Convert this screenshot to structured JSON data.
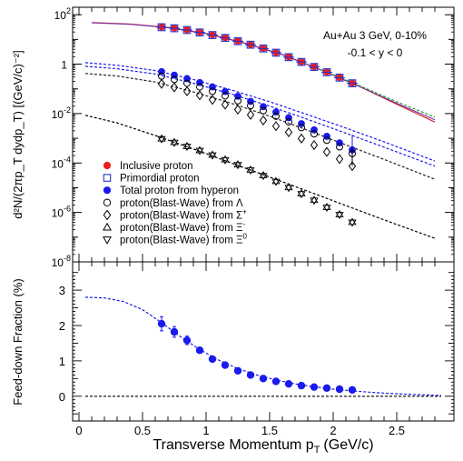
{
  "chart_data": [
    {
      "type": "scatter",
      "panel": "top",
      "ylabel": "d²N/(2πp_T dydp_T) [(GeV/c)⁻²]",
      "yscale": "log",
      "ylim": [
        1e-08,
        200
      ],
      "xlim": [
        -0.05,
        2.95
      ],
      "yticks": [
        {
          "base": "10",
          "exp": "2",
          "value": 100
        },
        {
          "base": "1",
          "exp": "",
          "value": 1
        },
        {
          "base": "10",
          "exp": "-2",
          "value": 0.01
        },
        {
          "base": "10",
          "exp": "-4",
          "value": 0.0001
        },
        {
          "base": "10",
          "exp": "-6",
          "value": 1e-06
        },
        {
          "base": "10",
          "exp": "-8",
          "value": 1e-08
        }
      ],
      "annotations": [
        "Au+Au 3 GeV, 0-10%",
        "-0.1 < y < 0"
      ],
      "legend_position": "bottom-left",
      "legend": [
        {
          "marker": "filled-circle",
          "color": "#ee1c1c",
          "label": "Inclusive proton",
          "sup": "",
          "sub": ""
        },
        {
          "marker": "open-square",
          "color": "#2233cc",
          "label": "Primordial proton",
          "sup": "",
          "sub": ""
        },
        {
          "marker": "filled-circle",
          "color": "#1a1aee",
          "label": "Total proton from hyperon",
          "sup": "",
          "sub": ""
        },
        {
          "marker": "open-circle",
          "color": "#000000",
          "label": "proton(Blast-Wave) from Λ",
          "sup": "",
          "sub": ""
        },
        {
          "marker": "open-diamond",
          "color": "#000000",
          "label": "proton(Blast-Wave) from Σ",
          "sup": "+",
          "sub": ""
        },
        {
          "marker": "open-triangle-up",
          "color": "#000000",
          "label": "proton(Blast-Wave) from Ξ",
          "sup": "",
          "sub": "-"
        },
        {
          "marker": "open-triangle-down",
          "color": "#000000",
          "label": "proton(Blast-Wave) from Ξ",
          "sup": "0",
          "sub": ""
        }
      ],
      "series": [
        {
          "name": "Inclusive proton",
          "marker": "filled-circle",
          "color": "#ee1c1c",
          "x": [
            0.65,
            0.75,
            0.85,
            0.95,
            1.05,
            1.15,
            1.25,
            1.35,
            1.45,
            1.55,
            1.65,
            1.75,
            1.85,
            1.95,
            2.05,
            2.15
          ],
          "y": [
            32,
            29,
            24.5,
            19.5,
            15.3,
            11.7,
            8.6,
            6.2,
            4.35,
            2.95,
            1.95,
            1.25,
            0.78,
            0.48,
            0.29,
            0.17
          ]
        },
        {
          "name": "Primordial proton",
          "marker": "open-square",
          "color": "#2233cc",
          "x": [
            0.65,
            0.75,
            0.85,
            0.95,
            1.05,
            1.15,
            1.25,
            1.35,
            1.45,
            1.55,
            1.65,
            1.75,
            1.85,
            1.95,
            2.05,
            2.15
          ],
          "y": [
            31.2,
            28.3,
            24,
            19.1,
            15,
            11.5,
            8.45,
            6.1,
            4.3,
            2.9,
            1.92,
            1.23,
            0.77,
            0.47,
            0.285,
            0.168
          ]
        },
        {
          "name": "Total proton from hyperon",
          "marker": "filled-circle",
          "color": "#1a1aee",
          "x": [
            0.65,
            0.75,
            0.85,
            0.95,
            1.05,
            1.15,
            1.25,
            1.35,
            1.45,
            1.55,
            1.65,
            1.75,
            1.85,
            1.95,
            2.05,
            2.15
          ],
          "y": [
            0.5,
            0.36,
            0.26,
            0.18,
            0.12,
            0.078,
            0.05,
            0.031,
            0.019,
            0.0115,
            0.0068,
            0.0039,
            0.0022,
            0.0012,
            0.00065,
            0.00034
          ],
          "yerr_high": [
            0.58,
            0.42,
            0,
            0,
            0,
            0,
            0,
            0,
            0,
            0,
            0,
            0,
            0,
            0,
            0,
            0.0014
          ]
        },
        {
          "name": "proton(Blast-Wave) from Λ",
          "marker": "open-circle",
          "color": "#000000",
          "x": [
            0.65,
            0.75,
            0.85,
            0.95,
            1.05,
            1.15,
            1.25,
            1.35,
            1.45,
            1.55,
            1.65,
            1.75,
            1.85,
            1.95,
            2.05,
            2.15
          ],
          "y": [
            0.33,
            0.24,
            0.17,
            0.12,
            0.08,
            0.052,
            0.033,
            0.021,
            0.013,
            0.0078,
            0.0046,
            0.0027,
            0.0015,
            0.00083,
            0.00045,
            0.00024
          ]
        },
        {
          "name": "proton(Blast-Wave) from Σ+",
          "marker": "open-diamond",
          "color": "#000000",
          "x": [
            0.65,
            0.75,
            0.85,
            0.95,
            1.05,
            1.15,
            1.25,
            1.35,
            1.45,
            1.55,
            1.65,
            1.75,
            1.85,
            1.95,
            2.05,
            2.15
          ],
          "y": [
            0.16,
            0.115,
            0.08,
            0.055,
            0.036,
            0.023,
            0.0145,
            0.0089,
            0.0053,
            0.0031,
            0.00175,
            0.00098,
            0.00053,
            0.00028,
            0.000145,
            7.5e-05
          ],
          "yerr_high": [
            0,
            0,
            0,
            0,
            0,
            0,
            0,
            0,
            0,
            0,
            0,
            0,
            0,
            0,
            0,
            0.00045
          ]
        },
        {
          "name": "proton(Blast-Wave) from Ξ-",
          "marker": "hourglass",
          "color": "#000000",
          "x": [
            0.65,
            0.75,
            0.85,
            0.95,
            1.05,
            1.15,
            1.25,
            1.35,
            1.45,
            1.55,
            1.65,
            1.75,
            1.85,
            1.95,
            2.05,
            2.15
          ],
          "y": [
            0.00095,
            0.00068,
            0.00047,
            0.00032,
            0.00021,
            0.000135,
            8.5e-05,
            5.2e-05,
            3.1e-05,
            1.8e-05,
            1.02e-05,
            5.7e-06,
            3.1e-06,
            1.6e-06,
            8.2e-07,
            4e-07
          ]
        }
      ],
      "curves": [
        {
          "name": "Inclusive proton fit",
          "color": "#cc2222",
          "style": "solid",
          "x": [
            0.1,
            0.4,
            0.7,
            1.0,
            1.3,
            1.6,
            1.9,
            2.2,
            2.5,
            2.8
          ],
          "y": [
            48,
            42,
            30.5,
            17.5,
            7.2,
            2.45,
            0.6,
            0.13,
            0.024,
            0.0045
          ]
        },
        {
          "name": "Primordial proton fit",
          "color": "#7a2a9a",
          "style": "solid",
          "x": [
            0.1,
            0.4,
            0.7,
            1.0,
            1.3,
            1.6,
            1.9,
            2.2,
            2.5,
            2.8
          ],
          "y": [
            47,
            41.2,
            30,
            17.1,
            7.1,
            2.42,
            0.59,
            0.128,
            0.026,
            0.0056
          ]
        },
        {
          "name": "Inclusive proton fit (green dashed)",
          "color": "#2a9a2a",
          "style": "dashed",
          "x": [
            1.9,
            2.2,
            2.5,
            2.8
          ],
          "y": [
            0.6,
            0.14,
            0.03,
            0.0072
          ]
        },
        {
          "name": "Total from hyperon (blast-wave)",
          "color": "#1a1aee",
          "style": "dashed",
          "x": [
            0.05,
            0.3,
            0.6,
            0.9,
            1.2,
            1.5,
            1.8,
            2.1,
            2.4,
            2.8
          ],
          "y": [
            1.15,
            0.9,
            0.55,
            0.24,
            0.09,
            0.03,
            0.009,
            0.0026,
            0.00072,
            0.00012
          ]
        },
        {
          "name": "from Λ (blast-wave)",
          "color": "#1a1aee",
          "style": "dashed",
          "x": [
            0.05,
            0.3,
            0.6,
            0.9,
            1.2,
            1.5,
            1.8,
            2.1,
            2.4,
            2.8
          ],
          "y": [
            0.82,
            0.65,
            0.4,
            0.17,
            0.062,
            0.02,
            0.0058,
            0.0016,
            0.00044,
            7.5e-05
          ]
        },
        {
          "name": "from Σ+ (blast-wave)",
          "color": "#222222",
          "style": "dashed",
          "x": [
            0.05,
            0.3,
            0.6,
            0.9,
            1.2,
            1.5,
            1.8,
            2.1,
            2.4,
            2.8
          ],
          "y": [
            0.42,
            0.33,
            0.19,
            0.075,
            0.026,
            0.0078,
            0.0021,
            0.00054,
            0.00014,
            2.2e-05
          ]
        },
        {
          "name": "from Ξ (blast-wave)",
          "color": "#000000",
          "style": "dashed",
          "x": [
            0.05,
            0.3,
            0.6,
            0.9,
            1.2,
            1.5,
            1.8,
            2.1,
            2.4,
            2.8
          ],
          "y": [
            0.0085,
            0.0042,
            0.0013,
            0.00037,
            0.0001,
            2.7e-05,
            7.2e-06,
            1.9e-06,
            5e-07,
            9e-08
          ]
        }
      ]
    },
    {
      "type": "scatter",
      "panel": "bottom",
      "xlabel": "Transverse Momentum p",
      "xlabel_sub": "T",
      "xlabel_unit": "(GeV/c)",
      "ylabel": "Feed-down Fraction (%)",
      "xlim": [
        -0.05,
        2.95
      ],
      "ylim": [
        -0.7,
        3.8
      ],
      "xticks": [
        0,
        0.5,
        1,
        1.5,
        2,
        2.5
      ],
      "yticks": [
        0,
        1,
        2,
        3
      ],
      "series": [
        {
          "name": "Feed-down fraction",
          "marker": "filled-circle",
          "color": "#1a1aee",
          "x": [
            0.65,
            0.75,
            0.85,
            0.95,
            1.05,
            1.15,
            1.25,
            1.35,
            1.45,
            1.55,
            1.65,
            1.75,
            1.85,
            1.95,
            2.05,
            2.15
          ],
          "y": [
            2.05,
            1.82,
            1.58,
            1.3,
            1.05,
            0.88,
            0.72,
            0.6,
            0.5,
            0.42,
            0.35,
            0.3,
            0.26,
            0.23,
            0.2,
            0.18
          ],
          "yerr": [
            0.2,
            0.15,
            0.12,
            0.08,
            0.06,
            0.05,
            0.04,
            0.03,
            0.03,
            0.02,
            0.02,
            0.02,
            0.02,
            0.02,
            0.02,
            0.02
          ]
        }
      ],
      "curves": [
        {
          "name": "Feed-down fraction fit",
          "color": "#1a1aee",
          "style": "dashed",
          "x": [
            0.05,
            0.2,
            0.35,
            0.5,
            0.65,
            0.8,
            0.95,
            1.1,
            1.25,
            1.4,
            1.55,
            1.7,
            1.85,
            2.0,
            2.15,
            2.3,
            2.5,
            2.7,
            2.85
          ],
          "y": [
            2.8,
            2.78,
            2.68,
            2.45,
            2.08,
            1.68,
            1.32,
            1.02,
            0.78,
            0.6,
            0.46,
            0.35,
            0.27,
            0.2,
            0.15,
            0.11,
            0.07,
            0.04,
            0.02
          ]
        },
        {
          "name": "zero line",
          "color": "#000000",
          "style": "dashed",
          "x": [
            0.05,
            2.85
          ],
          "y": [
            0,
            0
          ]
        }
      ]
    }
  ]
}
